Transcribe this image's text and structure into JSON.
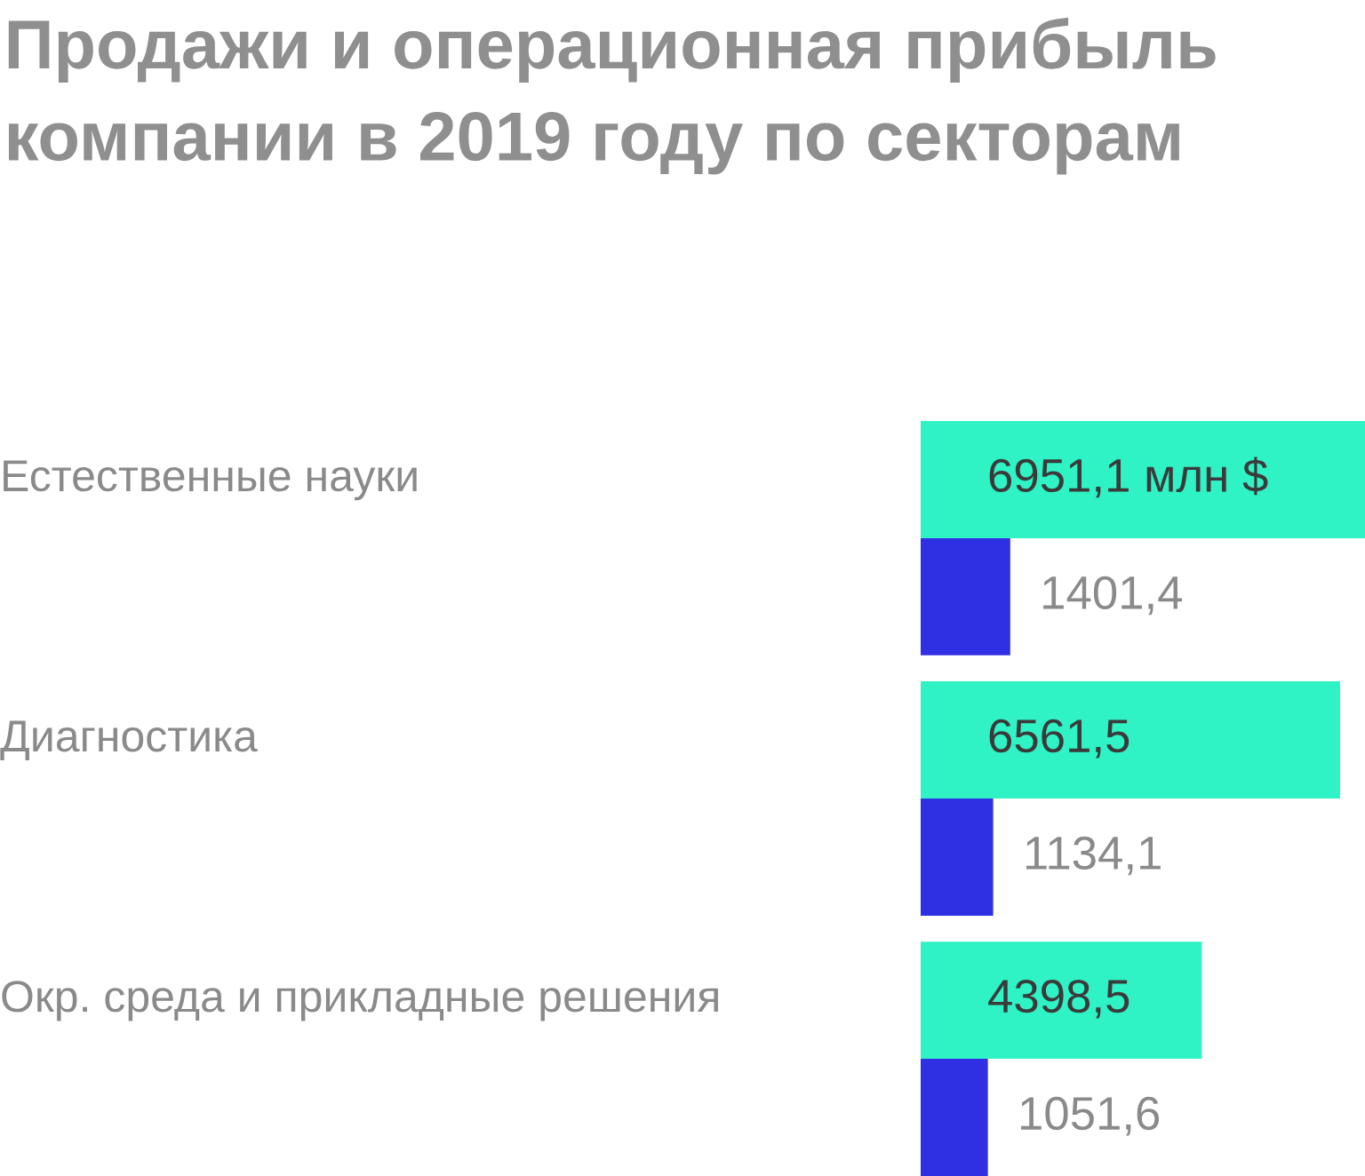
{
  "chart_data": {
    "type": "bar",
    "orientation": "horizontal",
    "title": "Продажи и операционная прибыль компании в 2019 году по секторам",
    "categories": [
      "Естественные науки",
      "Диагностика",
      "Окр. среда и прикладные решения"
    ],
    "series": [
      {
        "color": "#2ff2c5",
        "values": [
          6951.1,
          6561.5,
          4398.5
        ],
        "value_labels": [
          "6951,1 млн $",
          "6561,5",
          "4398,5"
        ]
      },
      {
        "color": "#2f2fe4",
        "values": [
          1401.4,
          1134.1,
          1051.6
        ],
        "value_labels": [
          "1401,4",
          "1134,1",
          "1051,6"
        ]
      }
    ],
    "xlim": [
      0,
      6951.1
    ]
  }
}
